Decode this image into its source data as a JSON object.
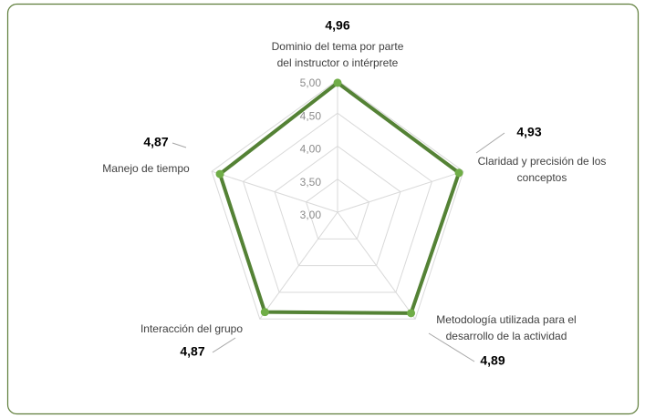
{
  "chart_data": {
    "type": "radar",
    "categories": [
      [
        "Dominio del tema por parte",
        "del instructor o intérprete"
      ],
      [
        "Claridad y precisión de los",
        "conceptos"
      ],
      [
        "Metodología utilizada para el",
        "desarrollo de la actividad"
      ],
      [
        "Interacción del grupo"
      ],
      [
        "Manejo de tiempo"
      ]
    ],
    "values": [
      4.96,
      4.93,
      4.89,
      4.87,
      4.87
    ],
    "value_labels": [
      "4,96",
      "4,93",
      "4,89",
      "4,87",
      "4,87"
    ],
    "color": "#548235",
    "marker_color": "#70ad47",
    "ylim": [
      3,
      5
    ],
    "yticks": [
      {
        "value": 3,
        "label": "3,00"
      },
      {
        "value": 3.5,
        "label": "3,50"
      },
      {
        "value": 4,
        "label": "4,00"
      },
      {
        "value": 4.5,
        "label": "4,50"
      },
      {
        "value": 5,
        "label": "5,00"
      }
    ],
    "grid": true
  }
}
